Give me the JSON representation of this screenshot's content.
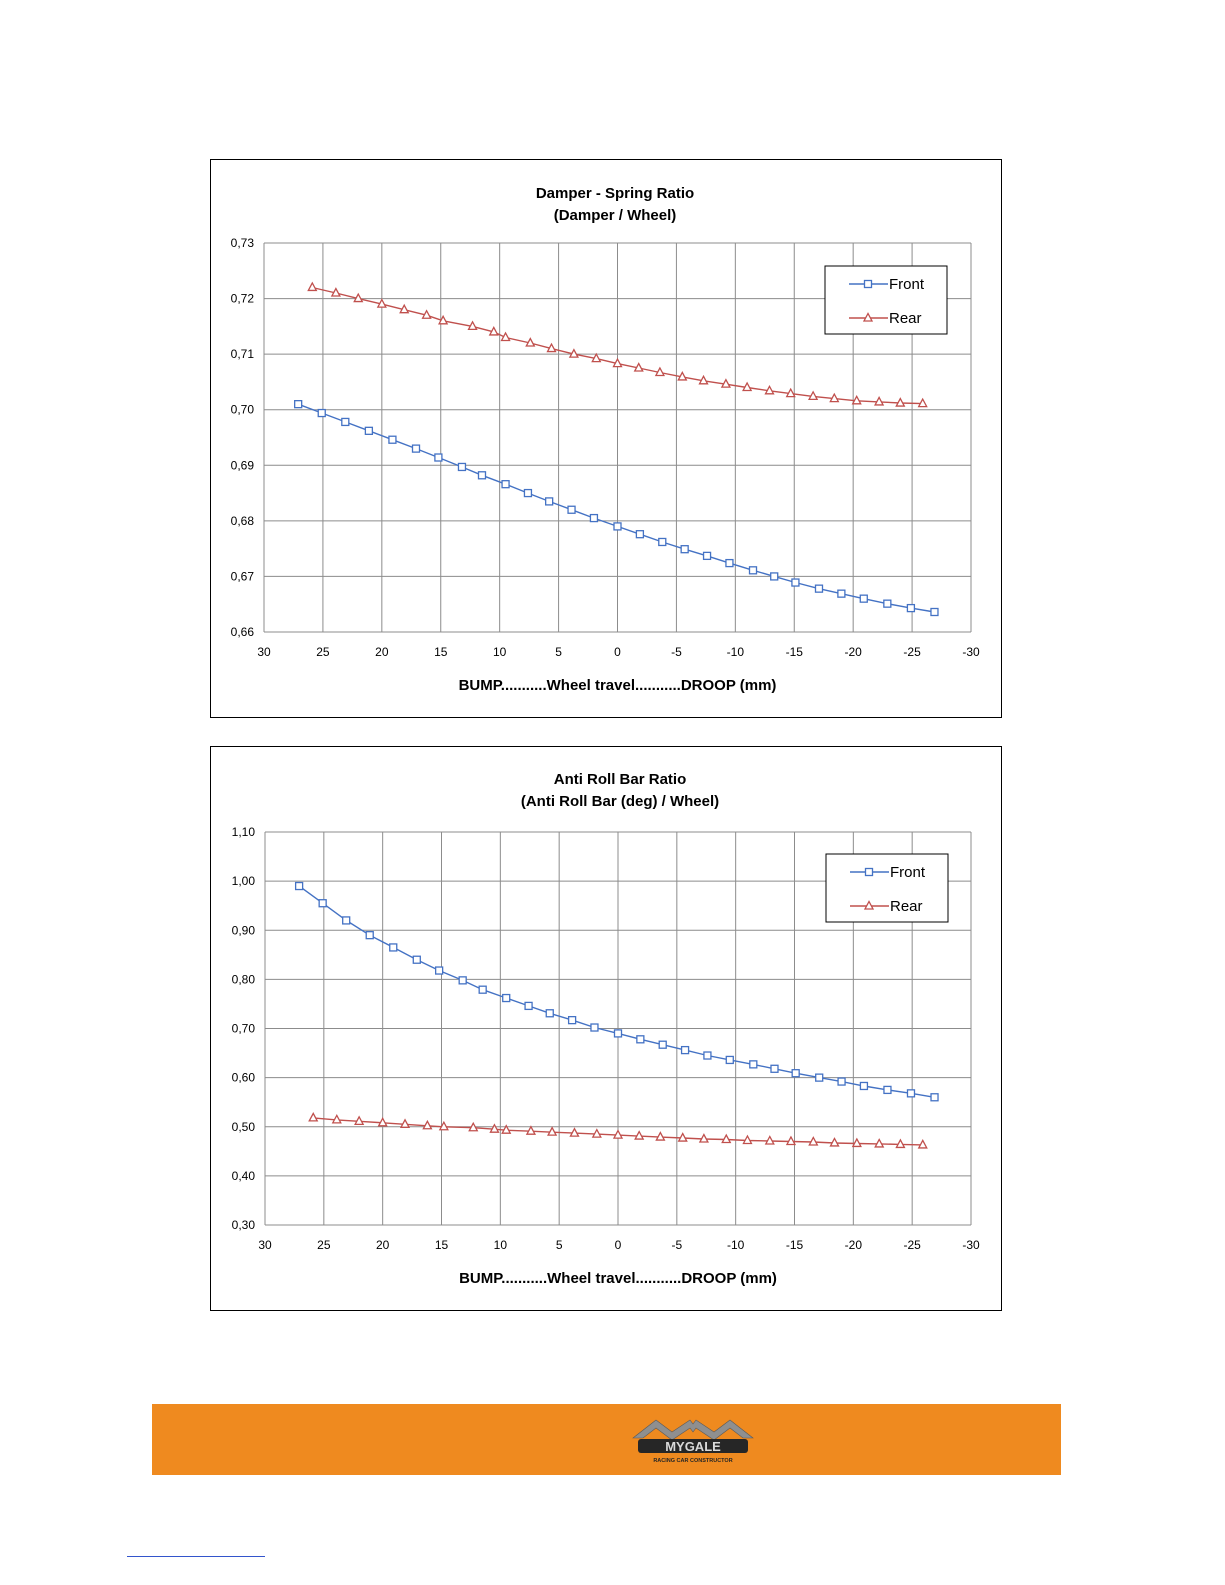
{
  "chart_data": [
    {
      "type": "line",
      "title": "Damper - Spring Ratio",
      "subtitle": "(Damper / Wheel)",
      "xlabel": "BUMP...........Wheel travel...........DROOP (mm)",
      "ylabel": "",
      "xlim": [
        30,
        -30
      ],
      "ylim": [
        0.66,
        0.73
      ],
      "x_ticks": [
        30,
        25,
        20,
        15,
        10,
        5,
        0,
        -5,
        -10,
        -15,
        -20,
        -25,
        -30
      ],
      "y_ticks": [
        0.66,
        0.67,
        0.68,
        0.69,
        0.7,
        0.71,
        0.72,
        0.73
      ],
      "x_tick_labels": [
        "30",
        "25",
        "20",
        "15",
        "10",
        "5",
        "0",
        "-5",
        "-10",
        "-15",
        "-20",
        "-25",
        "-30"
      ],
      "y_tick_labels": [
        "0,66",
        "0,67",
        "0,68",
        "0,69",
        "0,70",
        "0,71",
        "0,72",
        "0,73"
      ],
      "grid": true,
      "legend_position": "top-right",
      "series": [
        {
          "name": "Front",
          "color": "#4472c4",
          "marker": "square",
          "x": [
            27.1,
            25.1,
            23.1,
            21.1,
            19.1,
            17.1,
            15.2,
            13.2,
            11.5,
            9.5,
            7.6,
            5.8,
            3.9,
            2.0,
            0.0,
            -1.9,
            -3.8,
            -5.7,
            -7.6,
            -9.5,
            -11.5,
            -13.3,
            -15.1,
            -17.1,
            -19.0,
            -20.9,
            -22.9,
            -24.9,
            -26.9
          ],
          "y": [
            0.701,
            0.6994,
            0.6978,
            0.6962,
            0.6946,
            0.693,
            0.6914,
            0.6897,
            0.6882,
            0.6866,
            0.685,
            0.6835,
            0.682,
            0.6805,
            0.679,
            0.6776,
            0.6762,
            0.6749,
            0.6737,
            0.6724,
            0.6711,
            0.67,
            0.6689,
            0.6678,
            0.6669,
            0.666,
            0.6651,
            0.6643,
            0.6636
          ]
        },
        {
          "name": "Rear",
          "color": "#c0504d",
          "marker": "triangle",
          "x": [
            25.9,
            23.9,
            22.0,
            20.0,
            18.1,
            16.2,
            14.8,
            12.3,
            10.5,
            9.5,
            7.4,
            5.6,
            3.7,
            1.8,
            0.0,
            -1.8,
            -3.6,
            -5.5,
            -7.3,
            -9.2,
            -11.0,
            -12.9,
            -14.7,
            -16.6,
            -18.4,
            -20.3,
            -22.2,
            -24.0,
            -25.9
          ],
          "y": [
            0.722,
            0.721,
            0.72,
            0.719,
            0.718,
            0.717,
            0.716,
            0.715,
            0.714,
            0.713,
            0.712,
            0.711,
            0.71,
            0.7092,
            0.7083,
            0.7075,
            0.7067,
            0.7059,
            0.7052,
            0.7046,
            0.704,
            0.7034,
            0.7029,
            0.7024,
            0.702,
            0.7016,
            0.7014,
            0.7012,
            0.7011
          ]
        }
      ]
    },
    {
      "type": "line",
      "title": "Anti Roll Bar Ratio",
      "subtitle": "(Anti Roll Bar (deg) / Wheel)",
      "xlabel": "BUMP...........Wheel travel...........DROOP (mm)",
      "ylabel": "",
      "xlim": [
        30,
        -30
      ],
      "ylim": [
        0.3,
        1.1
      ],
      "x_ticks": [
        30,
        25,
        20,
        15,
        10,
        5,
        0,
        -5,
        -10,
        -15,
        -20,
        -25,
        -30
      ],
      "y_ticks": [
        0.3,
        0.4,
        0.5,
        0.6,
        0.7,
        0.8,
        0.9,
        1.0,
        1.1
      ],
      "x_tick_labels": [
        "30",
        "25",
        "20",
        "15",
        "10",
        "5",
        "0",
        "-5",
        "-10",
        "-15",
        "-20",
        "-25",
        "-30"
      ],
      "y_tick_labels": [
        "0,30",
        "0,40",
        "0,50",
        "0,60",
        "0,70",
        "0,80",
        "0,90",
        "1,00",
        "1,10"
      ],
      "grid": true,
      "legend_position": "top-right",
      "series": [
        {
          "name": "Front",
          "color": "#4472c4",
          "marker": "square",
          "x": [
            27.1,
            25.1,
            23.1,
            21.1,
            19.1,
            17.1,
            15.2,
            13.2,
            11.5,
            9.5,
            7.6,
            5.8,
            3.9,
            2.0,
            0.0,
            -1.9,
            -3.8,
            -5.7,
            -7.6,
            -9.5,
            -11.5,
            -13.3,
            -15.1,
            -17.1,
            -19.0,
            -20.9,
            -22.9,
            -24.9,
            -26.9
          ],
          "y": [
            0.99,
            0.955,
            0.92,
            0.89,
            0.865,
            0.84,
            0.818,
            0.798,
            0.779,
            0.762,
            0.746,
            0.731,
            0.717,
            0.702,
            0.69,
            0.678,
            0.667,
            0.656,
            0.645,
            0.636,
            0.627,
            0.618,
            0.609,
            0.6,
            0.592,
            0.583,
            0.575,
            0.568,
            0.56
          ]
        },
        {
          "name": "Rear",
          "color": "#c0504d",
          "marker": "triangle",
          "x": [
            25.9,
            23.9,
            22.0,
            20.0,
            18.1,
            16.2,
            14.8,
            12.3,
            10.5,
            9.5,
            7.4,
            5.6,
            3.7,
            1.8,
            0.0,
            -1.8,
            -3.6,
            -5.5,
            -7.3,
            -9.2,
            -11.0,
            -12.9,
            -14.7,
            -16.6,
            -18.4,
            -20.3,
            -22.2,
            -24.0,
            -25.9
          ],
          "y": [
            0.518,
            0.514,
            0.511,
            0.508,
            0.505,
            0.502,
            0.5,
            0.498,
            0.495,
            0.493,
            0.491,
            0.489,
            0.487,
            0.485,
            0.483,
            0.481,
            0.479,
            0.477,
            0.475,
            0.474,
            0.472,
            0.471,
            0.47,
            0.469,
            0.467,
            0.466,
            0.465,
            0.464,
            0.463
          ]
        }
      ]
    }
  ],
  "footer": {
    "logo_text": "MYGALE",
    "logo_subtext": "RACING CAR CONSTRUCTOR",
    "band_color": "#ef8a1f"
  }
}
